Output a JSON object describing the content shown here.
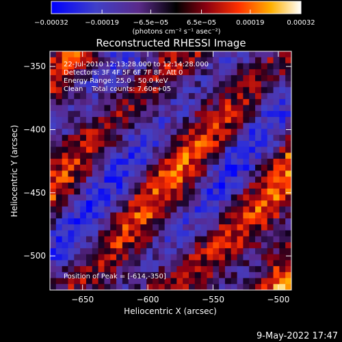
{
  "chart_data": {
    "type": "heatmap",
    "title": "Reconstructed RHESSI Image",
    "xlabel": "Heliocentric X (arcsec)",
    "ylabel": "Heliocentric Y (arcsec)",
    "xlim": [
      -675,
      -490
    ],
    "ylim": [
      -527,
      -338
    ],
    "x_ticks": [
      {
        "value": -650,
        "label": "−650"
      },
      {
        "value": -600,
        "label": "−600"
      },
      {
        "value": -550,
        "label": "−550"
      },
      {
        "value": -500,
        "label": "−500"
      }
    ],
    "y_ticks": [
      {
        "value": -350,
        "label": "−350"
      },
      {
        "value": -400,
        "label": "−400"
      },
      {
        "value": -450,
        "label": "−450"
      },
      {
        "value": -500,
        "label": "−500"
      }
    ],
    "colorbar": {
      "range": [
        -0.00032,
        0.00032
      ],
      "tick_values": [
        -0.00032,
        -0.00019,
        -6.5e-05,
        6.5e-05,
        0.00019,
        0.00032
      ],
      "tick_labels": [
        "−0.00032",
        "−0.00019",
        "−6.5e−05",
        "6.5e−05",
        "0.00019",
        "0.00032"
      ],
      "unit_label": "(photons cm⁻² s⁻¹ asec⁻²)"
    },
    "annotations": {
      "time_range": "22-Jul-2010 12:13:28.000 to 12:14:28.000",
      "detectors": "Detectors: 3F 4F 5F 6F 7F 8F, Att 0",
      "energy": "Energy Range: 25.0 - 50.0 keV",
      "clean": "Clean    Total counts: 7.60e+05",
      "peak": "Position of Peak = [-614,-350]"
    },
    "grid": false
  },
  "footer": {
    "date": "9-May-2022 17:47"
  }
}
